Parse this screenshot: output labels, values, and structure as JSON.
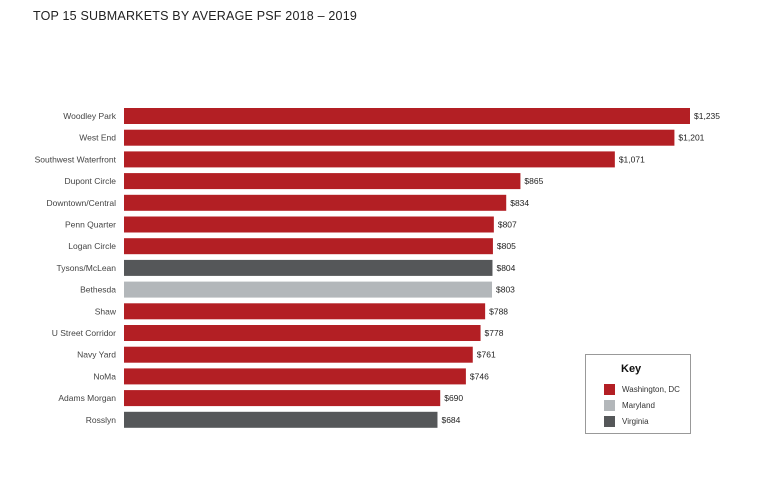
{
  "chart_data": {
    "type": "bar",
    "orientation": "horizontal",
    "title": "TOP 15 SUBMARKETS BY AVERAGE PSF 2018 – 2019",
    "categories": [
      "Woodley Park",
      "West End",
      "Southwest Waterfront",
      "Dupont Circle",
      "Downtown/Central",
      "Penn Quarter",
      "Logan Circle",
      "Tysons/McLean",
      "Bethesda",
      "Shaw",
      "U Street Corridor",
      "Navy Yard",
      "NoMa",
      "Adams Morgan",
      "Rosslyn"
    ],
    "values": [
      1235,
      1201,
      1071,
      865,
      834,
      807,
      805,
      804,
      803,
      788,
      778,
      761,
      746,
      690,
      684
    ],
    "data_labels": [
      "$1,235",
      "$1,201",
      "$1,071",
      "$865",
      "$834",
      "$807",
      "$805",
      "$804",
      "$803",
      "$788",
      "$778",
      "$761",
      "$746",
      "$690",
      "$684"
    ],
    "regions": [
      "Washington, DC",
      "Washington, DC",
      "Washington, DC",
      "Washington, DC",
      "Washington, DC",
      "Washington, DC",
      "Washington, DC",
      "Virginia",
      "Maryland",
      "Washington, DC",
      "Washington, DC",
      "Washington, DC",
      "Washington, DC",
      "Washington, DC",
      "Virginia"
    ],
    "grid": false,
    "legend": {
      "title": "Key",
      "placement": "bottom-right",
      "entries": [
        {
          "label": "Washington, DC",
          "color": "#b31f24"
        },
        {
          "label": "Maryland",
          "color": "#b3b7ba"
        },
        {
          "label": "Virginia",
          "color": "#555759"
        }
      ]
    }
  }
}
